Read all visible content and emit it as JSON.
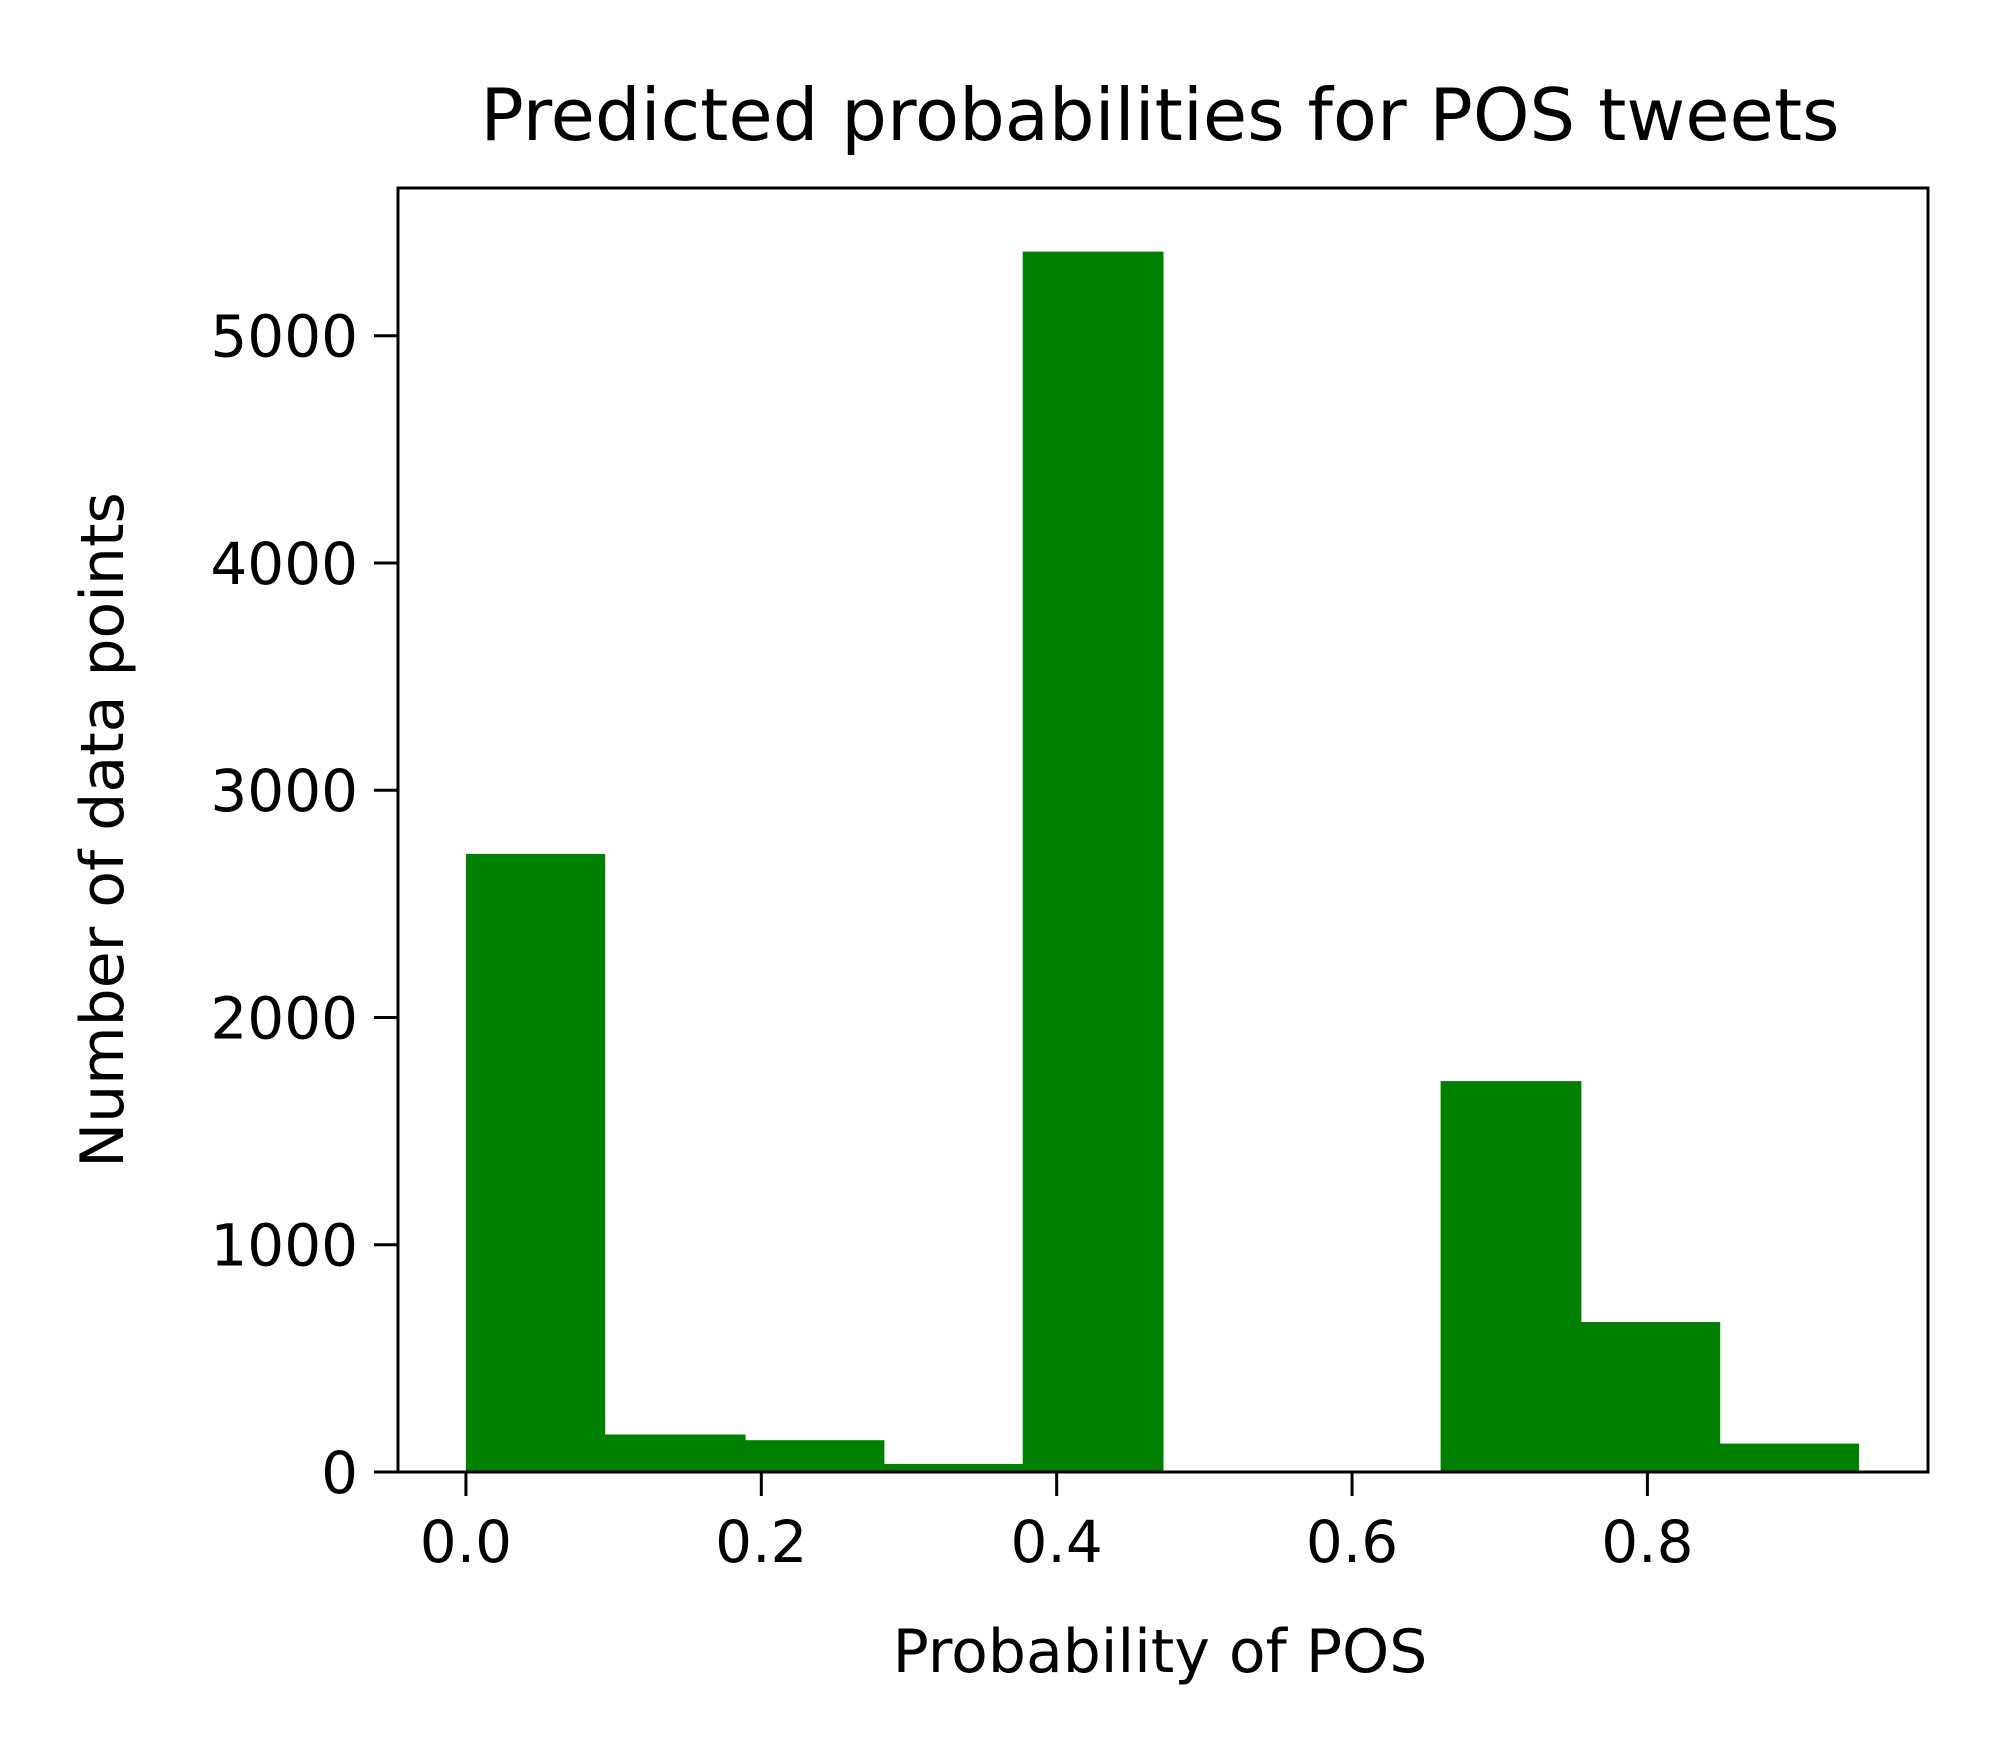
{
  "chart_data": {
    "type": "bar",
    "title": "Predicted probabilities for POS tweets",
    "xlabel": "Probability of POS",
    "ylabel": "Number of data points",
    "bar_color": "#008000",
    "xlim": [
      -0.046,
      0.99
    ],
    "ylim": [
      0,
      5650
    ],
    "xticks": [
      0.0,
      0.2,
      0.4,
      0.6,
      0.8
    ],
    "xtick_labels": [
      "0.0",
      "0.2",
      "0.4",
      "0.6",
      "0.8"
    ],
    "yticks": [
      0,
      1000,
      2000,
      3000,
      4000,
      5000
    ],
    "ytick_labels": [
      "0",
      "1000",
      "2000",
      "3000",
      "4000",
      "5000"
    ],
    "grid": false,
    "bins": [
      {
        "x0": 0.0,
        "x1": 0.094,
        "value": 2720
      },
      {
        "x0": 0.094,
        "x1": 0.189,
        "value": 165
      },
      {
        "x0": 0.189,
        "x1": 0.283,
        "value": 140
      },
      {
        "x0": 0.283,
        "x1": 0.377,
        "value": 35
      },
      {
        "x0": 0.377,
        "x1": 0.472,
        "value": 5370
      },
      {
        "x0": 0.472,
        "x1": 0.566,
        "value": 0
      },
      {
        "x0": 0.566,
        "x1": 0.66,
        "value": 0
      },
      {
        "x0": 0.66,
        "x1": 0.755,
        "value": 1720
      },
      {
        "x0": 0.755,
        "x1": 0.849,
        "value": 660
      },
      {
        "x0": 0.849,
        "x1": 0.943,
        "value": 125
      }
    ]
  }
}
